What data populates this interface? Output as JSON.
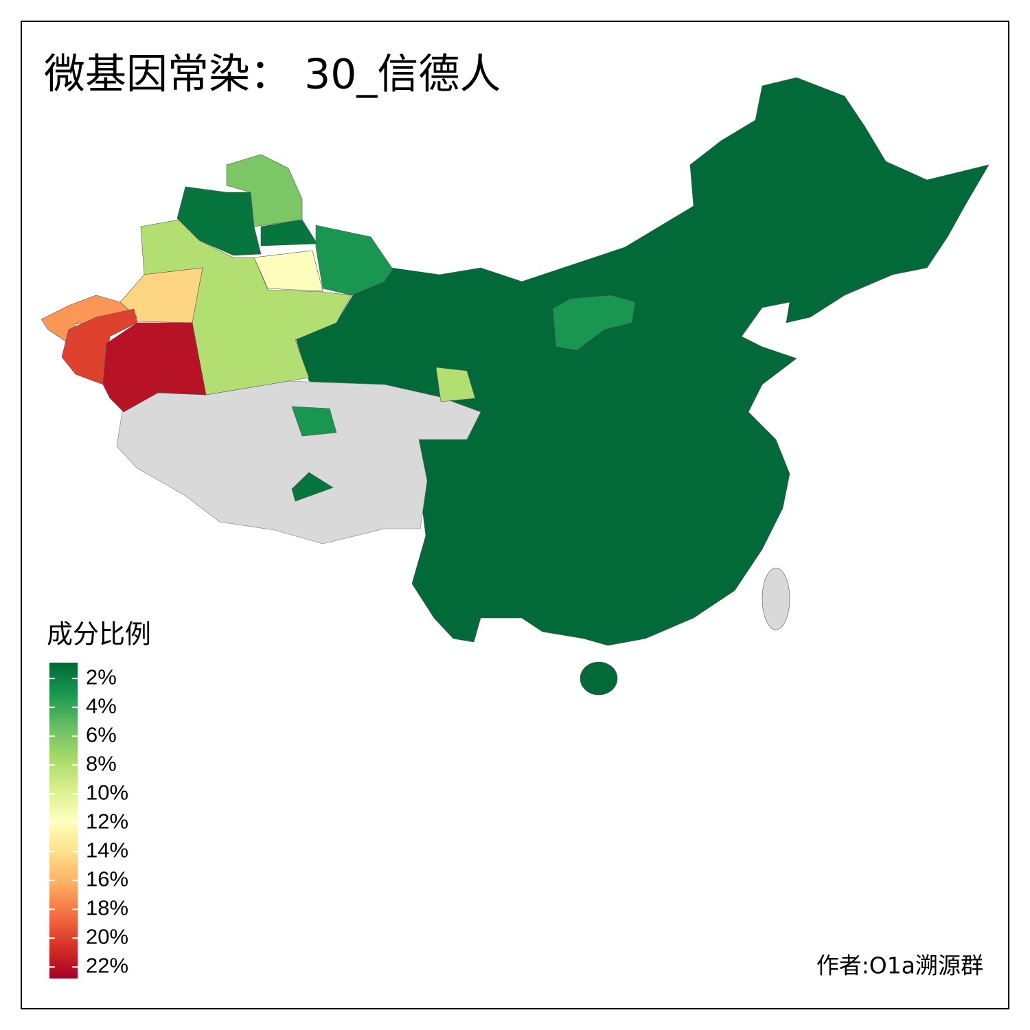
{
  "title": "微基因常染： 30_信德人",
  "legend": {
    "title": "成分比例",
    "range": [
      0.9,
      22.8
    ],
    "colors": [
      "#006837",
      "#1a9850",
      "#66bd63",
      "#a6d96a",
      "#d9ef8b",
      "#ffffbf",
      "#fee08b",
      "#fdae61",
      "#f46d43",
      "#d73027",
      "#a50026"
    ],
    "ticks": [
      {
        "value": 2,
        "label": "2%"
      },
      {
        "value": 4,
        "label": "4%"
      },
      {
        "value": 6,
        "label": "6%"
      },
      {
        "value": 8,
        "label": "8%"
      },
      {
        "value": 10,
        "label": "10%"
      },
      {
        "value": 12,
        "label": "12%"
      },
      {
        "value": 14,
        "label": "14%"
      },
      {
        "value": 16,
        "label": "16%"
      },
      {
        "value": 18,
        "label": "18%"
      },
      {
        "value": 20,
        "label": "20%"
      },
      {
        "value": 22,
        "label": "22%"
      }
    ]
  },
  "regions": {
    "values": [
      1,
      3,
      6,
      1.5,
      1.5,
      3,
      8,
      12,
      14.5,
      17,
      20,
      22,
      8,
      3,
      1.5
    ]
  },
  "credit": "作者:O1a溯源群"
}
